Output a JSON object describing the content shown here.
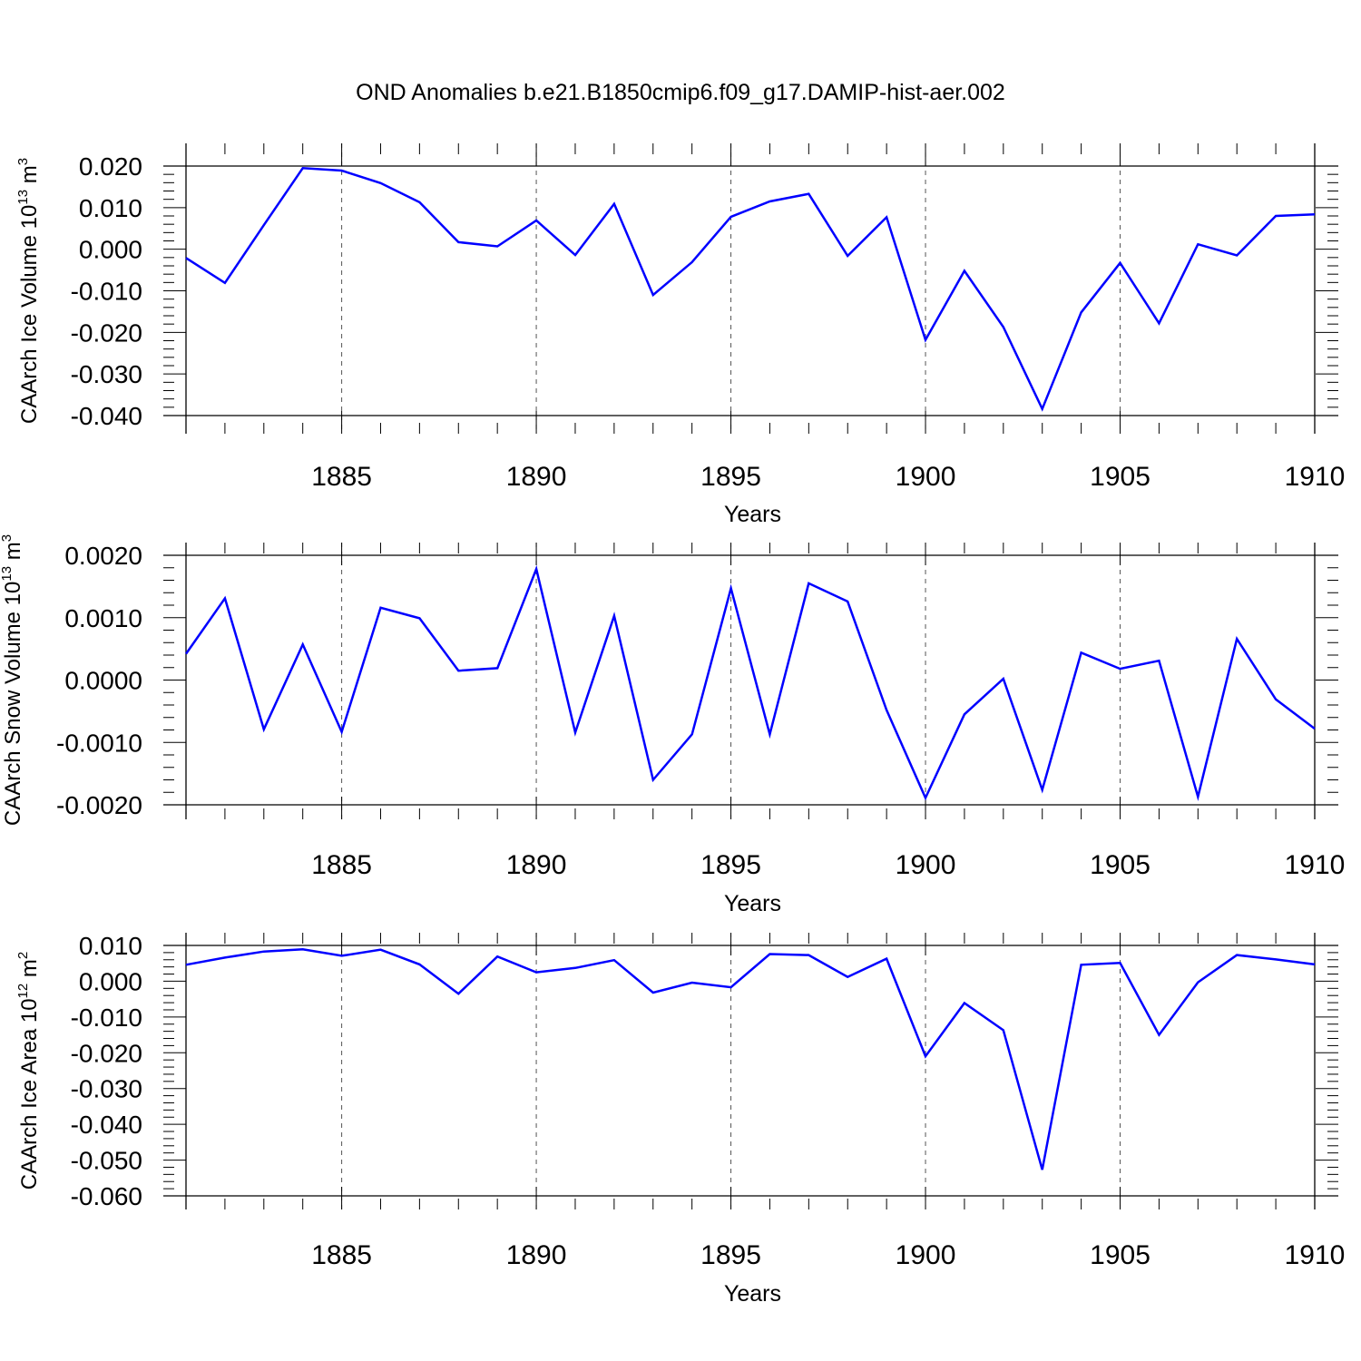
{
  "chart_data": {
    "title": "OND Anomalies b.e21.B1850cmip6.f09_g17.DAMIP-hist-aer.002",
    "line_color": "#0000ff",
    "panels": [
      {
        "type": "line",
        "ylabel": {
          "base": "CAArch Ice Volume 10",
          "exp": "13",
          "unit": " m",
          "unit_exp": "3"
        },
        "xlabel": "Years",
        "xlim": [
          1881,
          1910
        ],
        "ylim": [
          -0.04,
          0.02
        ],
        "xticks": [
          {
            "value": 1885,
            "label": "1885"
          },
          {
            "value": 1890,
            "label": "1890"
          },
          {
            "value": 1895,
            "label": "1895"
          },
          {
            "value": 1900,
            "label": "1900"
          },
          {
            "value": 1905,
            "label": "1905"
          },
          {
            "value": 1910,
            "label": "1910"
          }
        ],
        "yticks": [
          {
            "value": 0.02,
            "label": "0.020"
          },
          {
            "value": 0.01,
            "label": "0.010"
          },
          {
            "value": 0.0,
            "label": "0.000"
          },
          {
            "value": -0.01,
            "label": "-0.010"
          },
          {
            "value": -0.02,
            "label": "-0.020"
          },
          {
            "value": -0.03,
            "label": "-0.030"
          },
          {
            "value": -0.04,
            "label": "-0.040"
          }
        ],
        "x": [
          1881,
          1882,
          1883,
          1884,
          1885,
          1886,
          1887,
          1888,
          1889,
          1890,
          1891,
          1892,
          1893,
          1894,
          1895,
          1896,
          1897,
          1898,
          1899,
          1900,
          1901,
          1902,
          1903,
          1904,
          1905,
          1906,
          1907,
          1908,
          1909,
          1910
        ],
        "values": [
          -0.0021,
          -0.0081,
          0.0058,
          0.0195,
          0.0189,
          0.0159,
          0.0113,
          0.0017,
          0.0007,
          0.0069,
          -0.0014,
          0.0109,
          -0.011,
          -0.0031,
          0.0078,
          0.0115,
          0.0133,
          -0.0016,
          0.0077,
          -0.0218,
          -0.0052,
          -0.0187,
          -0.0384,
          -0.0152,
          -0.0033,
          -0.0178,
          0.0012,
          -0.0015,
          0.008,
          0.0084
        ]
      },
      {
        "type": "line",
        "ylabel": {
          "base": "CAArch Snow Volume 10",
          "exp": "13",
          "unit": " m",
          "unit_exp": "3"
        },
        "xlabel": "Years",
        "xlim": [
          1881,
          1910
        ],
        "ylim": [
          -0.002,
          0.002
        ],
        "xticks": [
          {
            "value": 1885,
            "label": "1885"
          },
          {
            "value": 1890,
            "label": "1890"
          },
          {
            "value": 1895,
            "label": "1895"
          },
          {
            "value": 1900,
            "label": "1900"
          },
          {
            "value": 1905,
            "label": "1905"
          },
          {
            "value": 1910,
            "label": "1910"
          }
        ],
        "yticks": [
          {
            "value": 0.002,
            "label": "0.0020"
          },
          {
            "value": 0.001,
            "label": "0.0010"
          },
          {
            "value": 0.0,
            "label": "0.0000"
          },
          {
            "value": -0.001,
            "label": "-0.0010"
          },
          {
            "value": -0.002,
            "label": "-0.0020"
          }
        ],
        "x": [
          1881,
          1882,
          1883,
          1884,
          1885,
          1886,
          1887,
          1888,
          1889,
          1890,
          1891,
          1892,
          1893,
          1894,
          1895,
          1896,
          1897,
          1898,
          1899,
          1900,
          1901,
          1902,
          1903,
          1904,
          1905,
          1906,
          1907,
          1908,
          1909,
          1910
        ],
        "values": [
          0.00042,
          0.00131,
          -0.00079,
          0.00057,
          -0.00083,
          0.00116,
          0.00099,
          0.00015,
          0.00019,
          0.00178,
          -0.00084,
          0.00103,
          -0.0016,
          -0.00087,
          0.00147,
          -0.00087,
          0.00155,
          0.00126,
          -0.00048,
          -0.00189,
          -0.00055,
          2e-05,
          -0.00176,
          0.00044,
          0.00018,
          0.00031,
          -0.00187,
          0.00066,
          -0.00031,
          -0.00078
        ]
      },
      {
        "type": "line",
        "ylabel": {
          "base": "CAArch Ice Area 10",
          "exp": "12",
          "unit": " m",
          "unit_exp": "2"
        },
        "xlabel": "Years",
        "xlim": [
          1881,
          1910
        ],
        "ylim": [
          -0.06,
          0.01
        ],
        "xticks": [
          {
            "value": 1885,
            "label": "1885"
          },
          {
            "value": 1890,
            "label": "1890"
          },
          {
            "value": 1895,
            "label": "1895"
          },
          {
            "value": 1900,
            "label": "1900"
          },
          {
            "value": 1905,
            "label": "1905"
          },
          {
            "value": 1910,
            "label": "1910"
          }
        ],
        "yticks": [
          {
            "value": 0.01,
            "label": "0.010"
          },
          {
            "value": 0.0,
            "label": "0.000"
          },
          {
            "value": -0.01,
            "label": "-0.010"
          },
          {
            "value": -0.02,
            "label": "-0.020"
          },
          {
            "value": -0.03,
            "label": "-0.030"
          },
          {
            "value": -0.04,
            "label": "-0.040"
          },
          {
            "value": -0.05,
            "label": "-0.050"
          },
          {
            "value": -0.06,
            "label": "-0.060"
          }
        ],
        "x": [
          1881,
          1882,
          1883,
          1884,
          1885,
          1886,
          1887,
          1888,
          1889,
          1890,
          1891,
          1892,
          1893,
          1894,
          1895,
          1896,
          1897,
          1898,
          1899,
          1900,
          1901,
          1902,
          1903,
          1904,
          1905,
          1906,
          1907,
          1908,
          1909,
          1910
        ],
        "values": [
          0.0046,
          0.0066,
          0.0083,
          0.0089,
          0.0071,
          0.0088,
          0.0047,
          -0.0035,
          0.0069,
          0.0025,
          0.0037,
          0.0059,
          -0.0032,
          -0.0004,
          -0.0017,
          0.0076,
          0.0073,
          0.0012,
          0.0063,
          -0.021,
          -0.0061,
          -0.0137,
          -0.0527,
          0.0046,
          0.0051,
          -0.015,
          -0.0003,
          0.0073,
          0.0061,
          0.0047
        ]
      }
    ]
  }
}
